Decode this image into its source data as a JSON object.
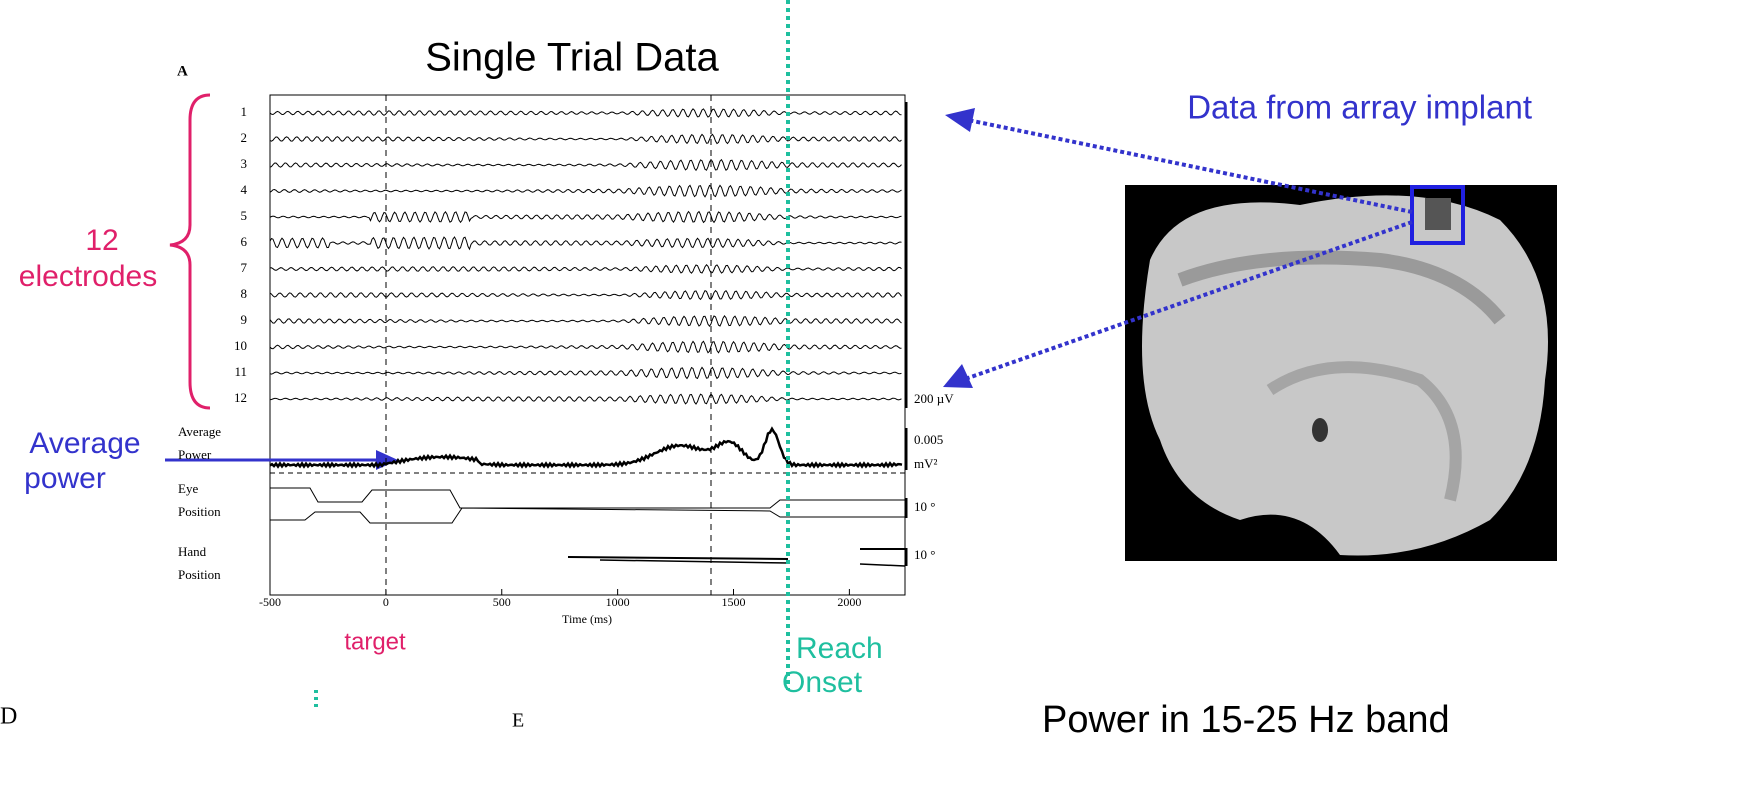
{
  "title": "Single Trial Data",
  "panel_label": "A",
  "electrode_labels": [
    "1",
    "2",
    "3",
    "4",
    "5",
    "6",
    "7",
    "8",
    "9",
    "10",
    "11",
    "12"
  ],
  "brace_label": [
    "12",
    "electrodes"
  ],
  "avg_label": [
    "Average",
    "power"
  ],
  "row_labels": {
    "average_power": [
      "Average",
      "Power"
    ],
    "eye_position": [
      "Eye",
      "Position"
    ],
    "hand_position": [
      "Hand",
      "Position"
    ]
  },
  "scale_labels": {
    "eeg": "200 µV",
    "power": [
      "0.005",
      "mV²"
    ],
    "eye": "10 °",
    "hand": "10 °"
  },
  "x_axis": {
    "label": "Time (ms)",
    "xlim": [
      -500,
      2240
    ],
    "xticks": [
      -500,
      0,
      500,
      1000,
      1500,
      2000
    ]
  },
  "implant_label": "Data from array implant",
  "target_label": "target",
  "reach_label": [
    "Reach",
    "Onset"
  ],
  "bottom_text": "Power in 15-25 Hz band",
  "fragments": [
    "D",
    "E"
  ]
}
